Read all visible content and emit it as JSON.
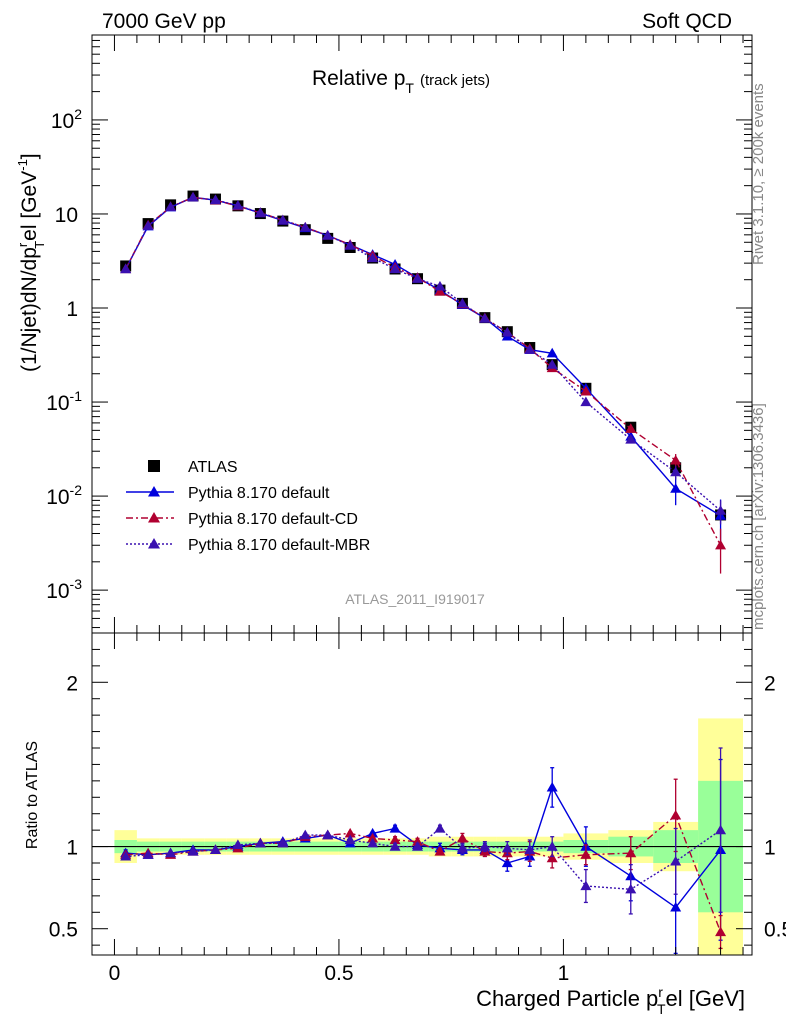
{
  "header": {
    "energy_label": "7000 GeV pp",
    "category_label": "Soft QCD"
  },
  "side_labels": {
    "rivet": "Rivet 3.1.10, ≥ 200k events",
    "mcplots": "mcplots.cern.ch [arXiv:1306.3436]"
  },
  "colors": {
    "atlas": "#000000",
    "pythia_default": "#0000dd",
    "pythia_cd": "#b00030",
    "pythia_mbr": "#3a10b0",
    "band_inner": "#99ff99",
    "band_outer": "#ffff99"
  },
  "chart_data": [
    {
      "type": "scatter",
      "panel": "main",
      "title": "Relative p",
      "title_sub": "T",
      "title_suffix": "(track jets)",
      "analysis_label": "ATLAS_2011_I919017",
      "ylabel_parts": {
        "a": "(1/Njet)dN/dp",
        "b": "r",
        "c": "T",
        "d": "el [GeV",
        "e": "-1",
        "f": "]"
      },
      "yscale": "log",
      "ylim": [
        0.00035,
        800
      ],
      "xlim": [
        -0.05,
        1.42
      ],
      "y_ticks": [
        {
          "value": 0.001,
          "base": "10",
          "exp": "-3"
        },
        {
          "value": 0.01,
          "base": "10",
          "exp": "-2"
        },
        {
          "value": 0.1,
          "base": "10",
          "exp": "-1"
        },
        {
          "value": 1,
          "base": "1",
          "exp": ""
        },
        {
          "value": 10,
          "base": "10",
          "exp": ""
        },
        {
          "value": 100,
          "base": "10",
          "exp": "2"
        }
      ],
      "legend": [
        {
          "key": "atlas",
          "label": "ATLAS"
        },
        {
          "key": "pythia_default",
          "label": "Pythia 8.170 default"
        },
        {
          "key": "pythia_cd",
          "label": "Pythia 8.170 default-CD"
        },
        {
          "key": "pythia_mbr",
          "label": "Pythia 8.170 default-MBR"
        }
      ],
      "x": [
        0.025,
        0.075,
        0.125,
        0.175,
        0.225,
        0.275,
        0.325,
        0.375,
        0.425,
        0.475,
        0.525,
        0.575,
        0.625,
        0.675,
        0.725,
        0.775,
        0.825,
        0.875,
        0.925,
        0.975,
        1.05,
        1.15,
        1.25,
        1.35
      ],
      "series": [
        {
          "key": "atlas",
          "name": "ATLAS",
          "marker": "square",
          "values": [
            2.8,
            7.9,
            12.5,
            15.5,
            14.4,
            12.2,
            10.1,
            8.4,
            6.8,
            5.5,
            4.4,
            3.4,
            2.6,
            2.05,
            1.55,
            1.12,
            0.79,
            0.56,
            0.38,
            0.25,
            0.14,
            0.054,
            0.02,
            0.0063
          ]
        },
        {
          "key": "pythia_default",
          "name": "Pythia 8.170 default",
          "marker": "triangle",
          "line": "solid",
          "values": [
            2.6,
            7.4,
            11.8,
            15.0,
            14.0,
            12.2,
            10.2,
            8.5,
            7.1,
            5.9,
            4.7,
            3.7,
            2.9,
            2.1,
            1.55,
            1.08,
            0.78,
            0.5,
            0.36,
            0.33,
            0.14,
            0.043,
            0.012,
            0.0062
          ],
          "errors": [
            0,
            0,
            0,
            0,
            0,
            0,
            0,
            0,
            0,
            0,
            0,
            0,
            0,
            0,
            0,
            0,
            0,
            0,
            0,
            0,
            0,
            0,
            0.004,
            0.003
          ]
        },
        {
          "key": "pythia_cd",
          "name": "Pythia 8.170 default-CD",
          "marker": "triangle",
          "line": "dashdot",
          "values": [
            2.6,
            7.6,
            11.9,
            15.0,
            14.0,
            12.1,
            10.3,
            8.6,
            7.2,
            5.9,
            4.7,
            3.6,
            2.7,
            2.1,
            1.5,
            1.1,
            0.78,
            0.55,
            0.37,
            0.23,
            0.13,
            0.052,
            0.024,
            0.003
          ],
          "errors": [
            0,
            0,
            0,
            0,
            0,
            0,
            0,
            0,
            0,
            0,
            0,
            0,
            0,
            0,
            0,
            0,
            0,
            0,
            0,
            0,
            0,
            0,
            0.004,
            0.0015
          ]
        },
        {
          "key": "pythia_mbr",
          "name": "Pythia 8.170 default-MBR",
          "marker": "triangle",
          "line": "dotted",
          "values": [
            2.6,
            7.5,
            11.9,
            15.0,
            14.1,
            12.3,
            10.3,
            8.6,
            7.2,
            5.9,
            4.6,
            3.4,
            2.6,
            2.05,
            1.7,
            1.12,
            0.77,
            0.55,
            0.36,
            0.25,
            0.1,
            0.04,
            0.018,
            0.007
          ],
          "errors": [
            0,
            0,
            0,
            0,
            0,
            0,
            0,
            0,
            0,
            0,
            0,
            0,
            0,
            0,
            0,
            0,
            0,
            0,
            0,
            0,
            0,
            0,
            0.003,
            0.002
          ]
        }
      ]
    },
    {
      "type": "scatter",
      "panel": "ratio",
      "ylabel": "Ratio to ATLAS",
      "xlabel_parts": {
        "a": "Charged Particle p",
        "b": "r",
        "c": "T",
        "d": "el [GeV]"
      },
      "ylim": [
        0.34,
        2.3
      ],
      "xlim": [
        -0.05,
        1.42
      ],
      "y_ticks": [
        0.5,
        1,
        2
      ],
      "y_tick_labels": [
        "0.5",
        "1",
        "2"
      ],
      "x_ticks": [
        0,
        0.5,
        1
      ],
      "x_tick_labels": [
        "0",
        "0.5",
        "1"
      ],
      "x": [
        0.025,
        0.075,
        0.125,
        0.175,
        0.225,
        0.275,
        0.325,
        0.375,
        0.425,
        0.475,
        0.525,
        0.575,
        0.625,
        0.675,
        0.725,
        0.775,
        0.825,
        0.875,
        0.925,
        0.975,
        1.05,
        1.15,
        1.25,
        1.35
      ],
      "bands": {
        "edges": [
          0,
          0.05,
          0.1,
          0.15,
          0.2,
          0.25,
          0.3,
          0.35,
          0.4,
          0.45,
          0.5,
          0.55,
          0.6,
          0.65,
          0.7,
          0.75,
          0.8,
          0.85,
          0.9,
          0.95,
          1.0,
          1.1,
          1.2,
          1.3,
          1.4
        ],
        "inner": [
          0.04,
          0.03,
          0.03,
          0.03,
          0.03,
          0.03,
          0.03,
          0.03,
          0.03,
          0.03,
          0.03,
          0.03,
          0.03,
          0.03,
          0.03,
          0.03,
          0.03,
          0.03,
          0.03,
          0.03,
          0.04,
          0.06,
          0.1,
          0.4
        ],
        "outer": [
          0.1,
          0.05,
          0.05,
          0.05,
          0.05,
          0.05,
          0.05,
          0.05,
          0.05,
          0.05,
          0.05,
          0.05,
          0.05,
          0.05,
          0.06,
          0.06,
          0.06,
          0.06,
          0.06,
          0.06,
          0.08,
          0.1,
          0.15,
          0.78
        ]
      },
      "series": [
        {
          "key": "pythia_default",
          "values": [
            0.96,
            0.95,
            0.96,
            0.98,
            0.98,
            1.0,
            1.02,
            1.03,
            1.05,
            1.07,
            1.02,
            1.08,
            1.11,
            1.01,
            0.99,
            0.98,
            0.98,
            0.9,
            0.94,
            1.36,
            1.0,
            0.82,
            0.63,
            0.98
          ],
          "errors": [
            0.02,
            0.01,
            0.01,
            0.01,
            0.01,
            0.01,
            0.01,
            0.01,
            0.01,
            0.01,
            0.01,
            0.01,
            0.02,
            0.02,
            0.03,
            0.03,
            0.04,
            0.05,
            0.06,
            0.12,
            0.12,
            0.15,
            0.28,
            0.55
          ]
        },
        {
          "key": "pythia_cd",
          "values": [
            0.95,
            0.96,
            0.95,
            0.97,
            0.98,
            0.99,
            1.02,
            1.02,
            1.06,
            1.07,
            1.08,
            1.05,
            1.04,
            1.03,
            0.97,
            1.05,
            0.97,
            0.96,
            0.97,
            0.93,
            0.95,
            0.96,
            1.19,
            0.48
          ],
          "errors": [
            0.01,
            0.01,
            0.01,
            0.01,
            0.01,
            0.01,
            0.01,
            0.01,
            0.01,
            0.01,
            0.01,
            0.01,
            0.02,
            0.02,
            0.02,
            0.03,
            0.03,
            0.04,
            0.06,
            0.06,
            0.06,
            0.1,
            0.22,
            0.1
          ]
        },
        {
          "key": "pythia_mbr",
          "values": [
            0.94,
            0.95,
            0.96,
            0.97,
            0.98,
            1.01,
            1.02,
            1.02,
            1.07,
            1.07,
            1.04,
            1.02,
            1.0,
            1.0,
            1.11,
            0.99,
            1.0,
            0.99,
            0.98,
            1.0,
            0.76,
            0.74,
            0.91,
            1.1
          ],
          "errors": [
            0.01,
            0.01,
            0.01,
            0.01,
            0.01,
            0.01,
            0.01,
            0.01,
            0.01,
            0.01,
            0.01,
            0.01,
            0.02,
            0.02,
            0.02,
            0.03,
            0.03,
            0.04,
            0.06,
            0.06,
            0.1,
            0.15,
            0.2,
            0.5
          ]
        }
      ]
    }
  ]
}
